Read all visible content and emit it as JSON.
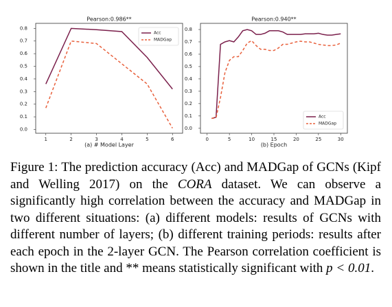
{
  "chart_data": [
    {
      "type": "line",
      "title": "Pearson:0.986**",
      "xlabel": "(a) # Model Layer",
      "x": [
        1,
        2,
        3,
        4,
        5,
        6
      ],
      "series": [
        {
          "name": "Acc",
          "color": "#7a1f4b",
          "values": [
            0.36,
            0.8,
            0.79,
            0.775,
            0.57,
            0.32
          ]
        },
        {
          "name": "MADGap",
          "color": "#e8603c",
          "dashed": true,
          "values": [
            0.17,
            0.7,
            0.68,
            0.52,
            0.36,
            0.01
          ]
        }
      ],
      "xlim": [
        0.6,
        6.4
      ],
      "xticks": [
        1,
        2,
        3,
        4,
        5,
        6
      ],
      "ylim": [
        -0.03,
        0.84
      ],
      "yticks": [
        {
          "value": 0,
          "label": "0.0"
        },
        {
          "value": 0.1,
          "label": "0.1"
        },
        {
          "value": 0.2,
          "label": "0.2"
        },
        {
          "value": 0.3,
          "label": "0.3"
        },
        {
          "value": 0.4,
          "label": "0.4"
        },
        {
          "value": 0.5,
          "label": "0.5"
        },
        {
          "value": 0.6,
          "label": "0.6"
        },
        {
          "value": 0.7,
          "label": "0.7"
        },
        {
          "value": 0.8,
          "label": "0.8"
        }
      ],
      "legend": "upper right"
    },
    {
      "type": "line",
      "title": "Pearson:0.940**",
      "xlabel": "(b) Epoch",
      "x": [
        1,
        2,
        3,
        4,
        5,
        6,
        7,
        8,
        9,
        10,
        11,
        12,
        13,
        14,
        15,
        16,
        17,
        18,
        19,
        20,
        21,
        22,
        23,
        24,
        25,
        26,
        27,
        28,
        29,
        30
      ],
      "series": [
        {
          "name": "Acc",
          "color": "#7a1f4b",
          "values": [
            0.08,
            0.09,
            0.68,
            0.7,
            0.71,
            0.7,
            0.74,
            0.79,
            0.8,
            0.79,
            0.76,
            0.76,
            0.77,
            0.79,
            0.79,
            0.79,
            0.78,
            0.76,
            0.76,
            0.76,
            0.76,
            0.765,
            0.765,
            0.765,
            0.77,
            0.76,
            0.755,
            0.755,
            0.76,
            0.765
          ]
        },
        {
          "name": "MADGap",
          "color": "#e8603c",
          "dashed": true,
          "values": [
            0.08,
            0.085,
            0.25,
            0.45,
            0.55,
            0.58,
            0.58,
            0.63,
            0.69,
            0.71,
            0.67,
            0.64,
            0.64,
            0.63,
            0.63,
            0.65,
            0.68,
            0.68,
            0.69,
            0.7,
            0.705,
            0.7,
            0.7,
            0.69,
            0.68,
            0.675,
            0.67,
            0.67,
            0.675,
            0.69
          ]
        }
      ],
      "xlim": [
        -1.5,
        31.5
      ],
      "xticks": [
        0,
        5,
        10,
        15,
        20,
        25,
        30
      ],
      "ylim": [
        -0.04,
        0.85
      ],
      "yticks": [
        {
          "value": 0,
          "label": "0.0"
        },
        {
          "value": 0.1,
          "label": "0.1"
        },
        {
          "value": 0.2,
          "label": "0.2"
        },
        {
          "value": 0.3,
          "label": "0.3"
        },
        {
          "value": 0.4,
          "label": "0.4"
        },
        {
          "value": 0.5,
          "label": "0.5"
        },
        {
          "value": 0.6,
          "label": "0.6"
        },
        {
          "value": 0.7,
          "label": "0.7"
        },
        {
          "value": 0.8,
          "label": "0.8"
        }
      ],
      "legend": "lower right"
    }
  ],
  "caption": {
    "before": "Figure 1: The prediction accuracy (Acc) and MADGap of GCNs (Kipf and Welling 2017) on the ",
    "dataset": "CORA",
    "after": " dataset. We can observe a significantly high correlation between the accuracy and MADGap in two different situations: (a) different models: results of GCNs with different number of layers; (b) different training periods: results after each epoch in the 2-layer GCN. The Pearson correlation coefficient is shown in the title and ** means statistically significant with ",
    "math": "p < 0.01",
    "end": "."
  }
}
